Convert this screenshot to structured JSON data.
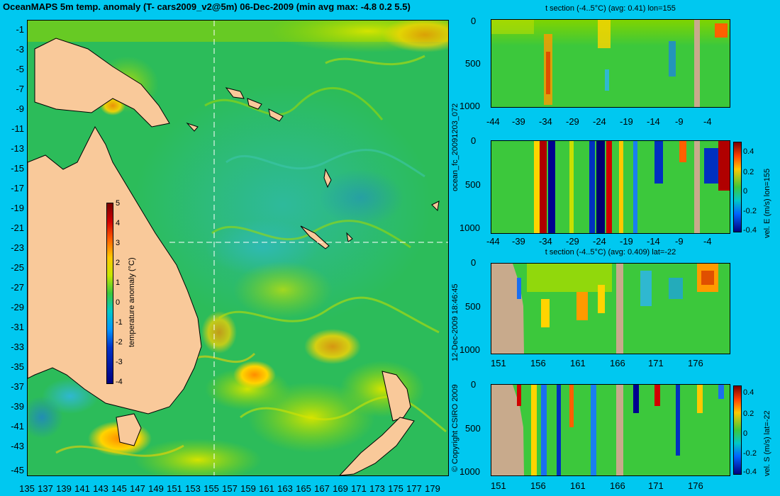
{
  "title": "OceanMAPS 5m temp. anomaly (T- cars2009_v2@5m) 06-Dec-2009 (min avg max: -4.8 0.2 5.5)",
  "map": {
    "y_labels": [
      "-1",
      "-3",
      "-5",
      "-7",
      "-9",
      "-11",
      "-13",
      "-15",
      "-17",
      "-19",
      "-21",
      "-23",
      "-25",
      "-27",
      "-29",
      "-31",
      "-33",
      "-35",
      "-37",
      "-39",
      "-41",
      "-43",
      "-45"
    ],
    "x_labels": [
      "135",
      "137",
      "139",
      "141",
      "143",
      "145",
      "147",
      "149",
      "151",
      "153",
      "155",
      "157",
      "159",
      "161",
      "163",
      "165",
      "167",
      "169",
      "171",
      "173",
      "175",
      "177",
      "179"
    ],
    "colorbar_ticks": [
      "5",
      "4",
      "3",
      "2",
      "1",
      "0",
      "-1",
      "-2",
      "-3",
      "-4"
    ],
    "colorbar_label": "temperature anomaly (°C)"
  },
  "side_texts": {
    "run_id": "ocean_fc_20091203_072",
    "timestamp": "12-Dec-2009 18:46:45",
    "copyright": "© Copyright CSIRO 2009"
  },
  "panels": [
    {
      "title": "t section (-4..5°C) (avg: 0.41) lon=155",
      "y_ticks": [
        "0",
        "500",
        "1000"
      ],
      "x_ticks": [
        "-44",
        "-39",
        "-34",
        "-29",
        "-24",
        "-19",
        "-14",
        "-9",
        "-4"
      ]
    },
    {
      "title": "",
      "y_ticks": [
        "0",
        "500",
        "1000"
      ],
      "x_ticks": [
        "-44",
        "-39",
        "-34",
        "-29",
        "-24",
        "-19",
        "-14",
        "-9",
        "-4"
      ],
      "colorbar_ticks": [
        "0.4",
        "0.2",
        "0",
        "-0.2",
        "-0.4"
      ],
      "colorbar_label": "vel. E (m/s) lon=155"
    },
    {
      "title": "t section (-4..5°C) (avg: 0.409) lat=-22",
      "y_ticks": [
        "0",
        "500",
        "1000"
      ],
      "x_ticks": [
        "151",
        "156",
        "161",
        "166",
        "171",
        "176"
      ]
    },
    {
      "title": "",
      "y_ticks": [
        "0",
        "500",
        "1000"
      ],
      "x_ticks": [
        "151",
        "156",
        "161",
        "166",
        "171",
        "176"
      ],
      "colorbar_ticks": [
        "0.4",
        "0.2",
        "0",
        "-0.2",
        "-0.4"
      ],
      "colorbar_label": "vel. S (m/s) lat=-22"
    }
  ],
  "colors": {
    "background": "#00c8f0",
    "land": "#f9c99a",
    "section_land": "#c8aa8c",
    "ocean_base": "#22b84a"
  }
}
